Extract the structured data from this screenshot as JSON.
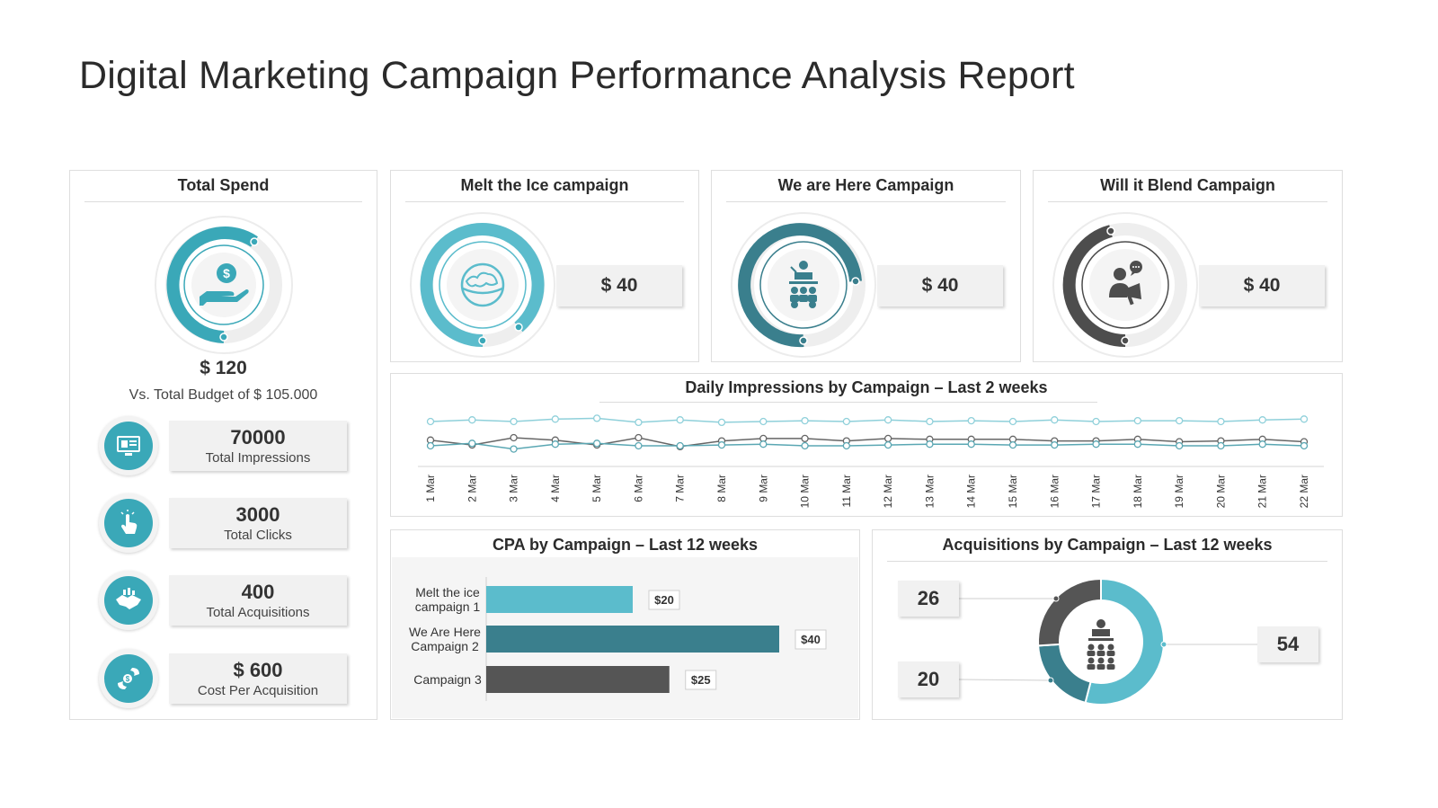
{
  "title": "Digital Marketing Campaign Performance Analysis Report",
  "total_spend": {
    "title": "Total Spend",
    "amount": "$ 120",
    "budget_text": "Vs. Total Budget of $ 105.000",
    "kpis": [
      {
        "value": "70000",
        "label": "Total Impressions",
        "icon": "monitor-icon"
      },
      {
        "value": "3000",
        "label": "Total Clicks",
        "icon": "pointer-hand-icon"
      },
      {
        "value": "400",
        "label": "Total Acquisitions",
        "icon": "handshake-icon"
      },
      {
        "value": "$ 600",
        "label": "Cost Per Acquisition",
        "icon": "money-hand-icon"
      }
    ]
  },
  "campaigns": [
    {
      "title": "Melt the Ice campaign",
      "amount": "$ 40",
      "icon": "globe-icon",
      "color": "#5bbccc"
    },
    {
      "title": "We are Here Campaign",
      "amount": "$ 40",
      "icon": "presenter-icon",
      "color": "#3a7f8d"
    },
    {
      "title": "Will it Blend Campaign",
      "amount": "$ 40",
      "icon": "speaker-megaphone-icon",
      "color": "#4d4d4d"
    }
  ],
  "colors": {
    "teal_light": "#5bbccc",
    "teal": "#3aa8b8",
    "teal_dark": "#3a7f8d",
    "gray_dark": "#555555",
    "panel_border": "#dedede"
  },
  "impressions": {
    "title": "Daily Impressions by Campaign – Last 2 weeks",
    "chart_data": {
      "type": "line",
      "x": [
        "1 Mar",
        "2 Mar",
        "3 Mar",
        "4 Mar",
        "5 Mar",
        "6 Mar",
        "7 Mar",
        "8 Mar",
        "9 Mar",
        "10 Mar",
        "11 Mar",
        "12 Mar",
        "13 Mar",
        "14 Mar",
        "15 Mar",
        "16 Mar",
        "17 Mar",
        "18 Mar",
        "19 Mar",
        "20 Mar",
        "21 Mar",
        "22 Mar"
      ],
      "series": [
        {
          "name": "Melt the Ice",
          "color": "#8fd0da",
          "values": [
            80,
            82,
            80,
            83,
            84,
            79,
            82,
            79,
            80,
            81,
            80,
            82,
            80,
            81,
            80,
            82,
            80,
            81,
            81,
            80,
            82,
            83
          ]
        },
        {
          "name": "We are Here",
          "color": "#666666",
          "values": [
            57,
            51,
            60,
            57,
            51,
            60,
            49,
            56,
            59,
            59,
            56,
            59,
            58,
            58,
            58,
            56,
            56,
            58,
            55,
            56,
            58,
            55
          ]
        },
        {
          "name": "Will it Blend",
          "color": "#5aa7b3",
          "values": [
            50,
            53,
            46,
            52,
            53,
            50,
            50,
            51,
            52,
            50,
            50,
            51,
            52,
            52,
            51,
            51,
            52,
            52,
            50,
            50,
            52,
            50
          ]
        }
      ],
      "ylim": [
        0,
        100
      ],
      "title": "Daily Impressions by Campaign – Last 2 weeks"
    }
  },
  "cpa": {
    "title": "CPA by Campaign – Last 12 weeks",
    "chart_data": {
      "type": "bar",
      "orientation": "horizontal",
      "categories": [
        "Melt the ice campaign 1",
        "We Are Here Campaign 2",
        "Campaign 3"
      ],
      "category_lines": [
        [
          "Melt the ice",
          "campaign 1"
        ],
        [
          "We Are Here",
          "Campaign 2"
        ],
        [
          "Campaign 3"
        ]
      ],
      "values": [
        20,
        40,
        25
      ],
      "value_labels": [
        "$20",
        "$40",
        "$25"
      ],
      "colors": [
        "#5bbccc",
        "#3a7f8d",
        "#555555"
      ],
      "xlim": [
        0,
        40
      ]
    }
  },
  "acquisitions": {
    "title": "Acquisitions by Campaign – Last 12 weeks",
    "chart_data": {
      "type": "pie",
      "donut": true,
      "labels": [
        "Melt the Ice",
        "We are Here",
        "Will it Blend"
      ],
      "values": [
        54,
        20,
        26
      ],
      "value_labels": [
        "54",
        "20",
        "26"
      ],
      "colors": [
        "#5bbccc",
        "#3a7f8d",
        "#555555"
      ]
    }
  }
}
